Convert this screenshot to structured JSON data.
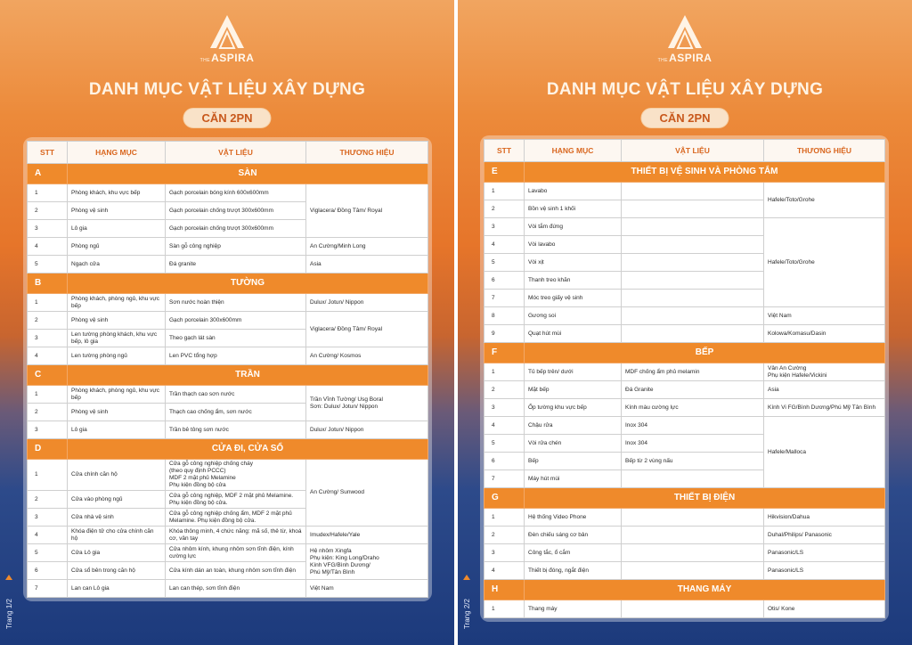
{
  "pages": [
    {
      "logo": {
        "prefix": "THE",
        "name": "ASPIRA"
      },
      "title": "DANH MỤC VẬT LIỆU XÂY DỰNG",
      "subtitle": "CĂN 2PN",
      "page_label": "Trang 1/2",
      "table": {
        "header": [
          "STT",
          "HẠNG MỤC",
          "VẬT LIỆU",
          "THƯƠNG HIỆU"
        ],
        "sections": [
          {
            "code": "A",
            "name": "SÀN",
            "rows": [
              [
                "1",
                "Phòng khách, khu vực bếp",
                "Gạch porcelain bóng kính 600x600mm",
                "Viglacera/ Đồng Tâm/ Royal"
              ],
              [
                "2",
                "Phòng vệ sinh",
                "Gạch porcelain chống trượt 300x600mm",
                null
              ],
              [
                "3",
                "Lô gia",
                "Gạch porcelain chống trượt 300x600mm",
                null
              ],
              [
                "4",
                "Phòng ngủ",
                "Sàn gỗ công nghiệp",
                "An Cường/Minh Long"
              ],
              [
                "5",
                "Ngạch cửa",
                "Đá granite",
                "Asia"
              ]
            ]
          },
          {
            "code": "B",
            "name": "TƯỜNG",
            "rows": [
              [
                "1",
                "Phòng khách, phòng ngủ, khu vực bếp",
                "Sơn nước hoàn thiện",
                "Dulux/ Jotun/ Nippon"
              ],
              [
                "2",
                "Phòng vệ sinh",
                "Gạch porcelain 300x600mm",
                "Viglacera/ Đồng Tâm/ Royal"
              ],
              [
                "3",
                "Len tường phòng khách, khu vực bếp, lô gia",
                "Theo gạch lát sàn",
                null
              ],
              [
                "4",
                "Len tường phòng ngủ",
                "Len PVC tổng hợp",
                "An Cường/ Kosmos"
              ]
            ]
          },
          {
            "code": "C",
            "name": "TRẦN",
            "rows": [
              [
                "1",
                "Phòng khách, phòng ngủ, khu vực bếp",
                "Trần thạch cao sơn nước",
                "Trần Vĩnh Tường/ Usg Boral\nSơn: Dulux/ Jotun/ Nippon"
              ],
              [
                "2",
                "Phòng vệ sinh",
                "Thạch cao chống ẩm, sơn nước",
                null
              ],
              [
                "3",
                "Lô gia",
                "Trần bê tông sơn nước",
                "Dulux/ Jotun/ Nippon"
              ]
            ]
          },
          {
            "code": "D",
            "name": "CỬA ĐI, CỬA SỔ",
            "rows": [
              [
                "1",
                "Cửa chính căn hộ",
                "Cửa gỗ công nghiệp chống cháy\n(theo quy định PCCC)\nMDF 2 mặt phủ Melamine\nPhụ kiện đồng bộ cửa",
                "An Cường/ Sunwood"
              ],
              [
                "2",
                "Cửa vào phòng ngủ",
                "Cửa gỗ công nghiệp, MDF 2 mặt phủ Melamine. Phụ kiện đồng bộ cửa.",
                null
              ],
              [
                "3",
                "Cửa nhà vệ sinh",
                "Cửa gỗ công nghiệp chống ẩm, MDF 2 mặt phủ Melamine. Phụ kiện đồng bộ cửa.",
                null
              ],
              [
                "4",
                "Khóa điện tử cho cửa chính căn hộ",
                "Khóa thông minh, 4 chức năng: mã số, thẻ từ, khoá cơ, vân tay",
                "Imudex/Hafele/Yale"
              ],
              [
                "5",
                "Cửa Lô gia",
                "Cửa nhôm kính, khung nhôm sơn tĩnh điện, kính cường lực",
                "Hệ nhôm Xingfa\nPhụ kiện: King Long/Draho\nKính VFG/Bình Dương/\nPhú Mỹ/Tân Bình"
              ],
              [
                "6",
                "Cửa sổ bên trong căn hộ",
                "Cửa kính dán an toàn, khung nhôm sơn tĩnh điện",
                null
              ],
              [
                "7",
                "Lan can Lô gia",
                "Lan can thép, sơn tĩnh điện",
                "Việt Nam"
              ]
            ]
          }
        ]
      }
    },
    {
      "logo": {
        "prefix": "THE",
        "name": "ASPIRA"
      },
      "title": "DANH MỤC VẬT LIỆU XÂY DỰNG",
      "subtitle": "CĂN 2PN",
      "page_label": "Trang 2/2",
      "table": {
        "header": [
          "STT",
          "HẠNG MỤC",
          "VẬT LIỆU",
          "THƯƠNG HIỆU"
        ],
        "sections": [
          {
            "code": "E",
            "name": "THIẾT BỊ VỆ SINH VÀ PHÒNG TẮM",
            "rows": [
              [
                "1",
                "Lavabo",
                null,
                "Hafele/Toto/Grohe"
              ],
              [
                "2",
                "Bồn vệ sinh 1 khối",
                null,
                null
              ],
              [
                "3",
                "Vòi tắm đứng",
                null,
                "Hafele/Toto/Grohe"
              ],
              [
                "4",
                "Vòi lavabo",
                null,
                null
              ],
              [
                "5",
                "Vòi xịt",
                null,
                null
              ],
              [
                "6",
                "Thanh treo khăn",
                null,
                null
              ],
              [
                "7",
                "Móc treo giấy vệ sinh",
                null,
                null
              ],
              [
                "8",
                "Gương soi",
                null,
                "Việt Nam"
              ],
              [
                "9",
                "Quạt hút mùi",
                null,
                "Kolowa/Komasu/Dasin"
              ]
            ]
          },
          {
            "code": "F",
            "name": "BẾP",
            "rows": [
              [
                "1",
                "Tủ bếp trên/ dưới",
                "MDF chống ẩm phủ melamin",
                "Vân An Cường\nPhụ kiện Hafele/Vickini"
              ],
              [
                "2",
                "Mặt bếp",
                "Đá Granite",
                "Asia"
              ],
              [
                "3",
                "Ốp tường khu vực bếp",
                "Kính màu cường lực",
                "Kính Vi FG/Bình Dương/Phú Mỹ Tân Bình"
              ],
              [
                "4",
                "Chậu rửa",
                "Inox 304",
                "Hafele/Malloca"
              ],
              [
                "5",
                "Vòi rửa chén",
                "Inox 304",
                null
              ],
              [
                "6",
                "Bếp",
                "Bếp từ 2 vùng nấu",
                null
              ],
              [
                "7",
                "Máy hút mùi",
                null,
                null
              ]
            ]
          },
          {
            "code": "G",
            "name": "THIẾT BỊ ĐIỆN",
            "rows": [
              [
                "1",
                "Hệ thống Video Phone",
                null,
                "Hikvision/Dahua"
              ],
              [
                "2",
                "Đèn chiếu sáng cơ bản",
                null,
                "Duhal/Philips/ Panasonic"
              ],
              [
                "3",
                "Công tắc, ổ cắm",
                null,
                "Panasonic/LS"
              ],
              [
                "4",
                "Thiết bị đóng, ngắt điện",
                null,
                "Panasonic/LS"
              ]
            ]
          },
          {
            "code": "H",
            "name": "THANG MÁY",
            "rows": [
              [
                "1",
                "Thang máy",
                null,
                "Otis/ Kone"
              ]
            ]
          }
        ]
      }
    }
  ]
}
